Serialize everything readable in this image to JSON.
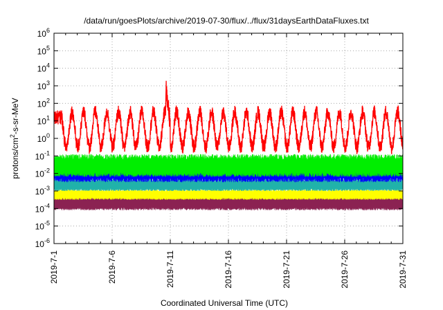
{
  "chart_data": {
    "type": "line",
    "title": "/data/run/goesPlots/archive/2019-07-30/flux/../flux/31daysEarthDataFluxes.txt",
    "xlabel": "Coordinated Universal Time (UTC)",
    "ylabel_base": "protons/cm",
    "ylabel_sup": "2",
    "ylabel_rest": "-s-sr-MeV",
    "yscale": "log",
    "ylim": [
      1e-06,
      1000000.0
    ],
    "y_ticks": [
      {
        "base": "10",
        "exp": "-6",
        "value": -6
      },
      {
        "base": "10",
        "exp": "-5",
        "value": -5
      },
      {
        "base": "10",
        "exp": "-4",
        "value": -4
      },
      {
        "base": "10",
        "exp": "-3",
        "value": -3
      },
      {
        "base": "10",
        "exp": "-2",
        "value": -2
      },
      {
        "base": "10",
        "exp": "-1",
        "value": -1
      },
      {
        "base": "10",
        "exp": "0",
        "value": 0
      },
      {
        "base": "10",
        "exp": "1",
        "value": 1
      },
      {
        "base": "10",
        "exp": "2",
        "value": 2
      },
      {
        "base": "10",
        "exp": "3",
        "value": 3
      },
      {
        "base": "10",
        "exp": "4",
        "value": 4
      },
      {
        "base": "10",
        "exp": "5",
        "value": 5
      },
      {
        "base": "10",
        "exp": "6",
        "value": 6
      }
    ],
    "x_range_days": [
      "2019-07-01",
      "2019-07-31"
    ],
    "x_ticks": [
      "2019-7-1",
      "2019-7-6",
      "2019-7-11",
      "2019-7-16",
      "2019-7-21",
      "2019-7-26",
      "2019-7-31"
    ],
    "x_tick_days": [
      1,
      6,
      11,
      16,
      21,
      26,
      31
    ],
    "grid": true,
    "series": [
      {
        "color": "#ff0000",
        "log10_range": [
          -1,
          2
        ],
        "typical_peak": 1.5,
        "typical_trough": -0.5,
        "max": 3.0
      },
      {
        "color": "#00ee00",
        "log10_range": [
          -2.2,
          -0.9
        ]
      },
      {
        "color": "#0000ff",
        "log10_range": [
          -2.5,
          -1.2
        ]
      },
      {
        "color": "#20b2aa",
        "log10_range": [
          -3.0,
          -2.3
        ]
      },
      {
        "color": "#ffff00",
        "log10_range": [
          -3.5,
          -2.9
        ]
      },
      {
        "color": "#8b2252",
        "log10_range": [
          -4.1,
          -3.3
        ]
      }
    ]
  }
}
